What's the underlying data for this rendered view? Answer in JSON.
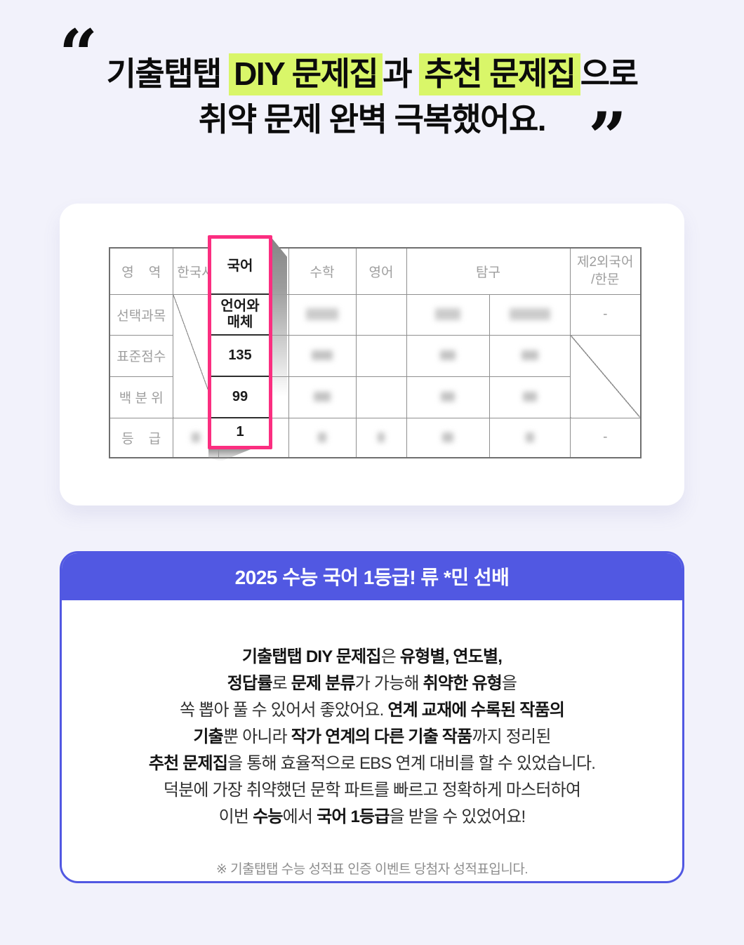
{
  "quote": {
    "open_mark": "“",
    "close_mark": "”",
    "line1_pre": "기출탭탭 ",
    "line1_hl1": "DIY 문제집",
    "line1_mid": "과 ",
    "line1_hl2": "추천 문제집",
    "line1_post": "으로",
    "line2": "취약 문제 완벽 극복했어요.",
    "highlight_color": "#d9f669"
  },
  "score_table": {
    "headers": {
      "area": "영    역",
      "korean_history": "한국사",
      "korean": "국어",
      "math": "수학",
      "english": "영어",
      "inquiry": "탐구",
      "second_language": "제2외국어\n/한문"
    },
    "row_labels": {
      "elective": "선택과목",
      "standard_score": "표준점수",
      "percentile": "백 분 위",
      "grade": "등    급"
    },
    "korean_highlight": {
      "subject": "국어",
      "elective": "언어와 매체",
      "standard_score": "135",
      "percentile": "99",
      "grade": "1",
      "border_color": "#fb2e80"
    },
    "dash": "-"
  },
  "review": {
    "header": "2025 수능 국어 1등급! 류 *민 선배",
    "lines": [
      [
        [
          "b",
          "기출탭탭 DIY 문제집"
        ],
        [
          "r",
          "은 "
        ],
        [
          "b",
          "유형별, 연도별,"
        ]
      ],
      [
        [
          "b",
          "정답률"
        ],
        [
          "r",
          "로 "
        ],
        [
          "b",
          "문제 분류"
        ],
        [
          "r",
          "가 가능해 "
        ],
        [
          "b",
          "취약한 유형"
        ],
        [
          "r",
          "을"
        ]
      ],
      [
        [
          "r",
          "쏙 뽑아 풀 수 있어서 좋았어요. "
        ],
        [
          "b",
          "연계 교재에 수록된 작품의"
        ]
      ],
      [
        [
          "b",
          "기출"
        ],
        [
          "r",
          "뿐 아니라 "
        ],
        [
          "b",
          "작가 연계의 다른 기출 작품"
        ],
        [
          "r",
          "까지 정리된"
        ]
      ],
      [
        [
          "b",
          "추천 문제집"
        ],
        [
          "r",
          "을 통해 효율적으로 EBS 연계 대비를 할 수 있었습니다."
        ]
      ],
      [
        [
          "r",
          "덕분에 가장 취약했던 문학 파트를 빠르고 정확하게 마스터하여"
        ]
      ],
      [
        [
          "r",
          "이번 "
        ],
        [
          "b",
          "수능"
        ],
        [
          "r",
          "에서 "
        ],
        [
          "b",
          "국어 1등급"
        ],
        [
          "r",
          "을 받을 수 있었어요!"
        ]
      ]
    ],
    "footnote": "※ 기출탭탭 수능 성적표 인증 이벤트 당첨자 성적표입니다."
  },
  "colors": {
    "page_background": "#f2f2fb",
    "highlight_green": "#d9f669",
    "accent_pink": "#fb2e80",
    "accent_blue": "#5158e2"
  }
}
